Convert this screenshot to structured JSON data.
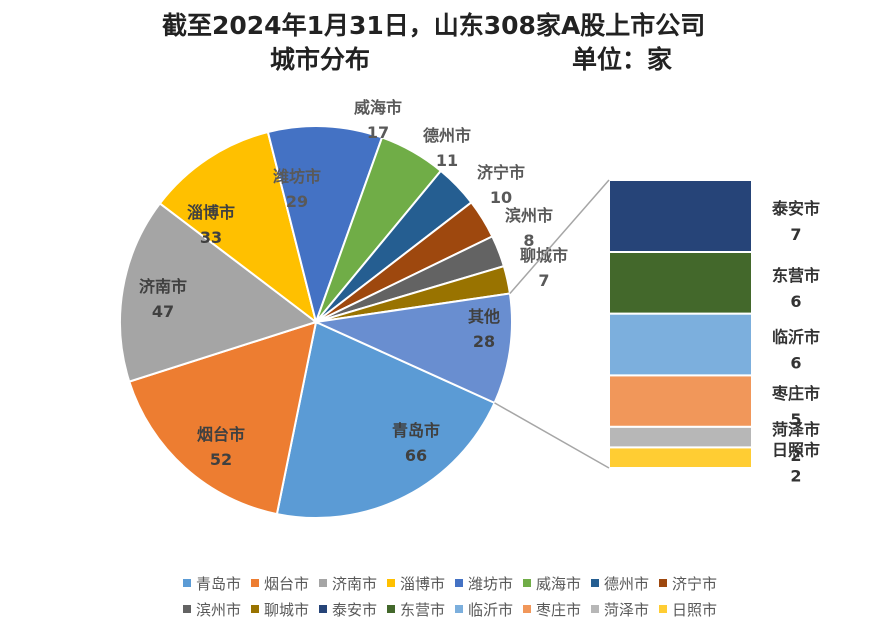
{
  "chart_data": {
    "type": "pie",
    "subtype": "pie-of-pie",
    "title_line1": "截至2024年1月31日，山东308家A股上市公司",
    "title_line2_left": "城市分布",
    "title_line2_right": "单位：家",
    "main_slices": [
      {
        "name": "青岛市",
        "value": 66,
        "color": "#5b9bd5"
      },
      {
        "name": "烟台市",
        "value": 52,
        "color": "#ed7d31"
      },
      {
        "name": "济南市",
        "value": 47,
        "color": "#a5a5a5"
      },
      {
        "name": "淄博市",
        "value": 33,
        "color": "#ffc000"
      },
      {
        "name": "潍坊市",
        "value": 29,
        "color": "#4472c4"
      },
      {
        "name": "威海市",
        "value": 17,
        "color": "#70ad47"
      },
      {
        "name": "德州市",
        "value": 11,
        "color": "#255e91"
      },
      {
        "name": "济宁市",
        "value": 10,
        "color": "#9e480e"
      },
      {
        "name": "滨州市",
        "value": 8,
        "color": "#636363"
      },
      {
        "name": "聊城市",
        "value": 7,
        "color": "#997300"
      }
    ],
    "other_slice": {
      "name": "其他",
      "value": 28,
      "color": "#698ed0"
    },
    "secondary_bar": [
      {
        "name": "泰安市",
        "value": 7,
        "color": "#264478"
      },
      {
        "name": "东营市",
        "value": 6,
        "color": "#43682b"
      },
      {
        "name": "临沂市",
        "value": 6,
        "color": "#7cafdd"
      },
      {
        "name": "枣庄市",
        "value": 5,
        "color": "#f1975a"
      },
      {
        "name": "菏泽市",
        "value": 2,
        "color": "#b7b7b7"
      },
      {
        "name": "日照市",
        "value": 2,
        "color": "#ffcd33"
      }
    ],
    "legend": [
      [
        "青岛市",
        "烟台市",
        "济南市",
        "淄博市",
        "潍坊市",
        "威海市",
        "德州市",
        "济宁市"
      ],
      [
        "滨州市",
        "聊城市",
        "泰安市",
        "东营市",
        "临沂市",
        "枣庄市",
        "菏泽市",
        "日照市"
      ]
    ],
    "legend_position": "bottom"
  }
}
